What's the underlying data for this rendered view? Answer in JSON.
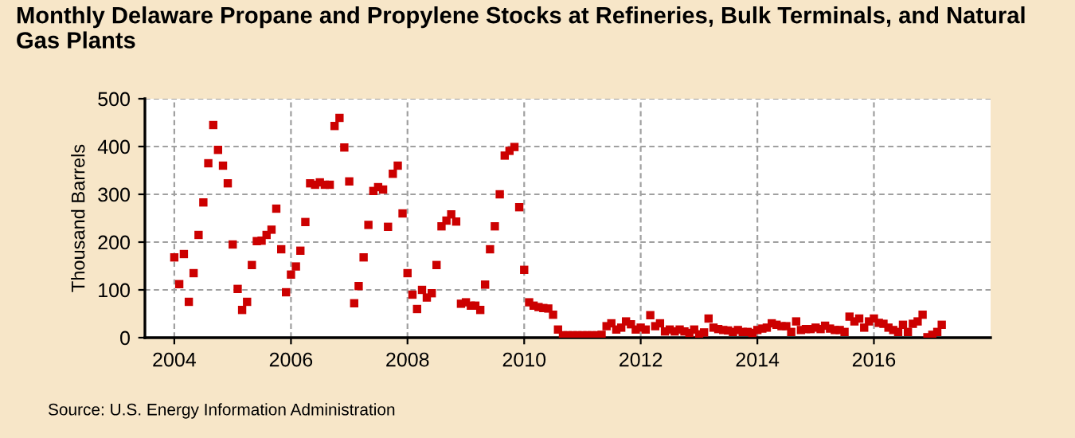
{
  "chart_data": {
    "type": "scatter",
    "title": "Monthly Delaware Propane and Propylene Stocks at Refineries, Bulk Terminals, and Natural Gas Plants",
    "ylabel": "Thousand Barrels",
    "annotations": [
      "Source: U.S. Energy Information Administration"
    ],
    "x": [
      "2004-01",
      "2004-02",
      "2004-03",
      "2004-04",
      "2004-05",
      "2004-06",
      "2004-07",
      "2004-08",
      "2004-09",
      "2004-10",
      "2004-11",
      "2004-12",
      "2005-01",
      "2005-02",
      "2005-03",
      "2005-04",
      "2005-05",
      "2005-06",
      "2005-07",
      "2005-08",
      "2005-09",
      "2005-10",
      "2005-11",
      "2005-12",
      "2006-01",
      "2006-02",
      "2006-03",
      "2006-04",
      "2006-05",
      "2006-06",
      "2006-07",
      "2006-08",
      "2006-09",
      "2006-10",
      "2006-11",
      "2006-12",
      "2007-01",
      "2007-02",
      "2007-03",
      "2007-04",
      "2007-05",
      "2007-06",
      "2007-07",
      "2007-08",
      "2007-09",
      "2007-10",
      "2007-11",
      "2007-12",
      "2008-01",
      "2008-02",
      "2008-03",
      "2008-04",
      "2008-05",
      "2008-06",
      "2008-07",
      "2008-08",
      "2008-09",
      "2008-10",
      "2008-11",
      "2008-12",
      "2009-01",
      "2009-02",
      "2009-03",
      "2009-04",
      "2009-05",
      "2009-06",
      "2009-07",
      "2009-08",
      "2009-09",
      "2009-10",
      "2009-11",
      "2009-12",
      "2010-01",
      "2010-02",
      "2010-03",
      "2010-04",
      "2010-05",
      "2010-06",
      "2010-07",
      "2010-08",
      "2010-09",
      "2010-10",
      "2010-11",
      "2010-12",
      "2011-01",
      "2011-02",
      "2011-03",
      "2011-04",
      "2011-05",
      "2011-06",
      "2011-07",
      "2011-08",
      "2011-09",
      "2011-10",
      "2011-11",
      "2011-12",
      "2012-01",
      "2012-02",
      "2012-03",
      "2012-04",
      "2012-05",
      "2012-06",
      "2012-07",
      "2012-08",
      "2012-09",
      "2012-10",
      "2012-11",
      "2012-12",
      "2013-01",
      "2013-02",
      "2013-03",
      "2013-04",
      "2013-05",
      "2013-06",
      "2013-07",
      "2013-08",
      "2013-09",
      "2013-10",
      "2013-11",
      "2013-12",
      "2014-01",
      "2014-02",
      "2014-03",
      "2014-04",
      "2014-05",
      "2014-06",
      "2014-07",
      "2014-08",
      "2014-09",
      "2014-10",
      "2014-11",
      "2014-12",
      "2015-01",
      "2015-02",
      "2015-03",
      "2015-04",
      "2015-05",
      "2015-06",
      "2015-07",
      "2015-08",
      "2015-09",
      "2015-10",
      "2015-11",
      "2015-12",
      "2016-01",
      "2016-02",
      "2016-03",
      "2016-04",
      "2016-05",
      "2016-06",
      "2016-07",
      "2016-08",
      "2016-09",
      "2016-10",
      "2016-11",
      "2016-12",
      "2017-01",
      "2017-02",
      "2017-03"
    ],
    "series": [
      {
        "color": "#cc0000",
        "values": [
          168,
          112,
          175,
          75,
          135,
          215,
          283,
          365,
          445,
          393,
          360,
          323,
          195,
          102,
          58,
          75,
          152,
          202,
          203,
          215,
          226,
          270,
          185,
          95,
          132,
          149,
          182,
          242,
          323,
          320,
          325,
          320,
          320,
          443,
          460,
          398,
          327,
          72,
          108,
          168,
          236,
          307,
          315,
          310,
          232,
          343,
          360,
          260,
          135,
          90,
          60,
          100,
          84,
          93,
          152,
          233,
          245,
          258,
          243,
          71,
          74,
          67,
          67,
          58,
          111,
          185,
          233,
          300,
          381,
          391,
          399,
          273,
          142,
          74,
          67,
          64,
          62,
          61,
          48,
          17,
          5,
          5,
          5,
          5,
          5,
          5,
          5,
          5,
          6,
          24,
          30,
          17,
          21,
          34,
          28,
          17,
          21,
          17,
          47,
          24,
          30,
          13,
          17,
          13,
          17,
          13,
          10,
          17,
          7,
          11,
          40,
          21,
          18,
          16,
          15,
          12,
          16,
          12,
          12,
          10,
          16,
          19,
          21,
          30,
          27,
          24,
          24,
          12,
          34,
          16,
          18,
          18,
          21,
          18,
          25,
          19,
          16,
          16,
          12,
          44,
          34,
          40,
          21,
          34,
          40,
          31,
          29,
          21,
          16,
          12,
          27,
          12,
          29,
          34,
          48,
          1,
          6,
          12,
          27
        ]
      }
    ],
    "xlim": [
      "2003-07-01",
      "2018-01-01"
    ],
    "xticks": [
      {
        "value": "2004-01-01",
        "label": "2004"
      },
      {
        "value": "2006-01-01",
        "label": "2006"
      },
      {
        "value": "2008-01-01",
        "label": "2008"
      },
      {
        "value": "2010-01-01",
        "label": "2010"
      },
      {
        "value": "2012-01-01",
        "label": "2012"
      },
      {
        "value": "2014-01-01",
        "label": "2014"
      },
      {
        "value": "2016-01-01",
        "label": "2016"
      }
    ],
    "ylim": [
      0,
      500
    ],
    "yticks": [
      0,
      100,
      200,
      300,
      400,
      500
    ],
    "grid": true,
    "marker": "square"
  }
}
